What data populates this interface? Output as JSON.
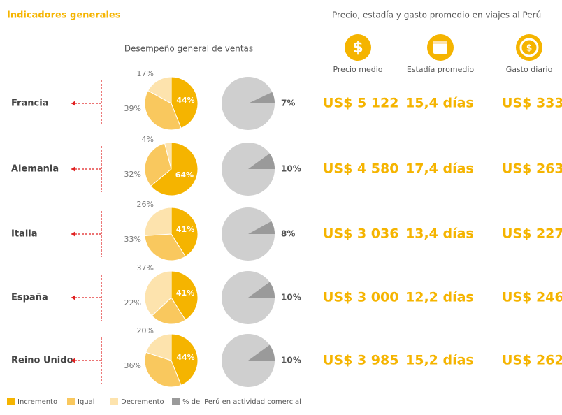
{
  "header": {
    "title": "Indicadores generales",
    "subtitle": "Precio, estadía y gasto promedio en viajes al Perú",
    "sales_title": "Desempeño general de ventas",
    "columns": [
      "Precio medio",
      "Estadía promedio",
      "Gasto diario"
    ]
  },
  "legend": [
    {
      "name": "Incremento",
      "color": "#f5b400"
    },
    {
      "name": "Igual",
      "color": "#f9c85e"
    },
    {
      "name": "Decremento",
      "color": "#fde3ad"
    },
    {
      "name": "% del Perú en actividad comercial",
      "color": "#9a9a9a"
    }
  ],
  "pie_background": "#cfcfcf",
  "rows": [
    {
      "country": "Francia",
      "sales": {
        "values": [
          44,
          39,
          17
        ],
        "value_labels": [
          "44%",
          "39%",
          "17%"
        ]
      },
      "peru_share": 7,
      "peru_label": "7%",
      "price": "US$ 5 122",
      "stay": "15,4 días",
      "daily": "US$ 333"
    },
    {
      "country": "Alemania",
      "sales": {
        "values": [
          64,
          32,
          4
        ],
        "value_labels": [
          "64%",
          "32%",
          "4%"
        ]
      },
      "peru_share": 10,
      "peru_label": "10%",
      "price": "US$ 4 580",
      "stay": "17,4 días",
      "daily": "US$ 263"
    },
    {
      "country": "Italia",
      "sales": {
        "values": [
          41,
          33,
          26
        ],
        "value_labels": [
          "41%",
          "33%",
          "26%"
        ]
      },
      "peru_share": 8,
      "peru_label": "8%",
      "price": "US$ 3 036",
      "stay": "13,4 días",
      "daily": "US$ 227"
    },
    {
      "country": "España",
      "sales": {
        "values": [
          41,
          22,
          37
        ],
        "value_labels": [
          "41%",
          "22%",
          "37%"
        ]
      },
      "peru_share": 10,
      "peru_label": "10%",
      "price": "US$ 3 000",
      "stay": "12,2 días",
      "daily": "US$ 246"
    },
    {
      "country": "Reino Unido",
      "sales": {
        "values": [
          44,
          36,
          20
        ],
        "value_labels": [
          "44%",
          "36%",
          "20%"
        ]
      },
      "peru_share": 10,
      "peru_label": "10%",
      "price": "US$ 3 985",
      "stay": "15,2 días",
      "daily": "US$ 262"
    }
  ]
}
